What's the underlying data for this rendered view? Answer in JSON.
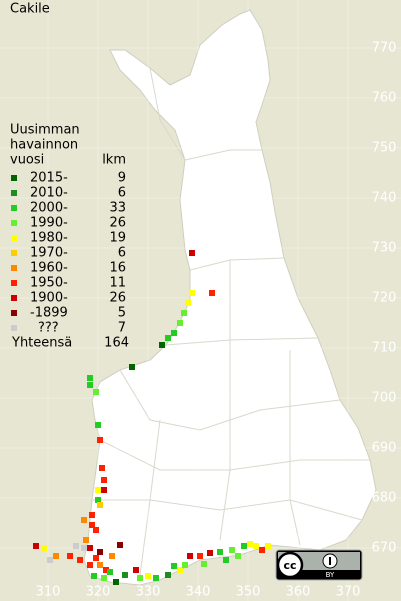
{
  "title": "Cakile",
  "legend": {
    "header": [
      "Uusimman",
      "havainnon",
      "vuosi"
    ],
    "count_header": "lkm",
    "rows": [
      {
        "label": "2015-",
        "count": 9,
        "color": "#006400"
      },
      {
        "label": "2010-",
        "count": 6,
        "color": "#1e8c1e"
      },
      {
        "label": "2000-",
        "count": 33,
        "color": "#22cc22"
      },
      {
        "label": "1990-",
        "count": 26,
        "color": "#66ee33"
      },
      {
        "label": "1980-",
        "count": 19,
        "color": "#ffff00"
      },
      {
        "label": "1970-",
        "count": 6,
        "color": "#ffcc00"
      },
      {
        "label": "1960-",
        "count": 16,
        "color": "#ff8800"
      },
      {
        "label": "1950-",
        "count": 11,
        "color": "#ff2200"
      },
      {
        "label": "1900-",
        "count": 26,
        "color": "#cc0000"
      },
      {
        "label": "-1899",
        "count": 5,
        "color": "#880000"
      },
      {
        "label": "???",
        "count": 7,
        "color": "#cccccc"
      }
    ],
    "total_label": "Yhteensä",
    "total": 164
  },
  "grid": {
    "northing": [
      770,
      760,
      750,
      740,
      730,
      720,
      710,
      700,
      690,
      680,
      670
    ],
    "easting": [
      310,
      320,
      330,
      340,
      350,
      360,
      370
    ]
  },
  "license": {
    "badge": "cc",
    "by": "BY"
  }
}
